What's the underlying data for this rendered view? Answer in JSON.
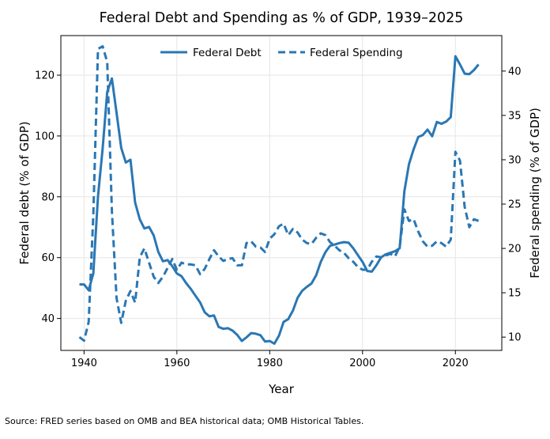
{
  "chart_data": {
    "type": "line",
    "title": "Federal Debt and Spending as % of GDP, 1939–2025",
    "xlabel": "Year",
    "ylabel_left": "Federal debt (% of GDP)",
    "ylabel_right": "Federal spending (% of GDP)",
    "xlim": [
      1935,
      2030
    ],
    "ylim_left": [
      29.5,
      133
    ],
    "ylim_right": [
      8.5,
      44
    ],
    "x_ticks": [
      1940,
      1960,
      1980,
      2000,
      2020
    ],
    "y_ticks_left": [
      40,
      60,
      80,
      100,
      120
    ],
    "y_ticks_right": [
      10,
      15,
      20,
      25,
      30,
      35,
      40
    ],
    "grid": true,
    "legend_position": "top-center",
    "colors": {
      "line": "#2a77b4"
    },
    "series": [
      {
        "name": "Federal Debt",
        "axis": "left",
        "style": "solid",
        "x": [
          1939,
          1940,
          1941,
          1942,
          1943,
          1944,
          1945,
          1946,
          1947,
          1948,
          1949,
          1950,
          1951,
          1952,
          1953,
          1954,
          1955,
          1956,
          1957,
          1958,
          1959,
          1960,
          1961,
          1962,
          1963,
          1964,
          1965,
          1966,
          1967,
          1968,
          1969,
          1970,
          1971,
          1972,
          1973,
          1974,
          1975,
          1976,
          1977,
          1978,
          1979,
          1980,
          1981,
          1982,
          1983,
          1984,
          1985,
          1986,
          1987,
          1988,
          1989,
          1990,
          1991,
          1992,
          1993,
          1994,
          1995,
          1996,
          1997,
          1998,
          1999,
          2000,
          2001,
          2002,
          2003,
          2004,
          2005,
          2006,
          2007,
          2008,
          2009,
          2010,
          2011,
          2012,
          2013,
          2014,
          2015,
          2016,
          2017,
          2018,
          2019,
          2020,
          2021,
          2022,
          2023,
          2024,
          2025
        ],
        "values": [
          51.2,
          51.2,
          49.3,
          54.8,
          80.1,
          95.9,
          114.5,
          118.9,
          107.6,
          96.1,
          91.3,
          92.2,
          78.1,
          72.6,
          69.6,
          70.1,
          67.3,
          61.9,
          58.8,
          59.2,
          57.2,
          54.8,
          53.9,
          51.6,
          49.7,
          47.5,
          45.3,
          42.0,
          40.7,
          41.0,
          37.2,
          36.6,
          36.8,
          36.0,
          34.6,
          32.6,
          33.8,
          35.2,
          35.0,
          34.5,
          32.4,
          32.6,
          31.7,
          34.4,
          38.9,
          39.8,
          42.6,
          46.8,
          49.1,
          50.4,
          51.5,
          54.2,
          58.6,
          61.8,
          63.9,
          64.3,
          64.8,
          65.1,
          64.9,
          63.1,
          60.8,
          58.6,
          55.6,
          55.4,
          57.5,
          60.1,
          61.1,
          61.6,
          62.1,
          63.1,
          81.8,
          90.7,
          95.6,
          99.7,
          100.3,
          102.1,
          99.9,
          104.6,
          104.0,
          104.7,
          106.2,
          126.2,
          123.5,
          120.5,
          120.3,
          121.7,
          123.5
        ]
      },
      {
        "name": "Federal Spending",
        "axis": "right",
        "style": "dashed",
        "x": [
          1939,
          1940,
          1941,
          1942,
          1943,
          1944,
          1945,
          1946,
          1947,
          1948,
          1949,
          1950,
          1951,
          1952,
          1953,
          1954,
          1955,
          1956,
          1957,
          1958,
          1959,
          1960,
          1961,
          1962,
          1963,
          1964,
          1965,
          1966,
          1967,
          1968,
          1969,
          1970,
          1971,
          1972,
          1973,
          1974,
          1975,
          1976,
          1977,
          1978,
          1979,
          1980,
          1981,
          1982,
          1983,
          1984,
          1985,
          1986,
          1987,
          1988,
          1989,
          1990,
          1991,
          1992,
          1993,
          1994,
          1995,
          1996,
          1997,
          1998,
          1999,
          2000,
          2001,
          2002,
          2003,
          2004,
          2005,
          2006,
          2007,
          2008,
          2009,
          2010,
          2011,
          2012,
          2013,
          2014,
          2015,
          2016,
          2017,
          2018,
          2019,
          2020,
          2021,
          2022,
          2023,
          2024,
          2025
        ],
        "values": [
          10.0,
          9.6,
          11.7,
          23.8,
          42.5,
          42.8,
          41.0,
          24.2,
          14.4,
          11.6,
          14.1,
          15.2,
          13.9,
          19.0,
          20.0,
          18.4,
          16.8,
          16.1,
          16.8,
          17.8,
          18.8,
          17.6,
          18.4,
          18.2,
          18.2,
          18.1,
          17.1,
          17.7,
          18.8,
          19.8,
          19.1,
          18.6,
          18.8,
          18.9,
          18.1,
          18.1,
          20.6,
          20.8,
          20.2,
          20.1,
          19.6,
          21.1,
          21.6,
          22.5,
          22.8,
          21.5,
          22.2,
          21.8,
          21.0,
          20.6,
          20.5,
          21.2,
          21.7,
          21.5,
          20.7,
          20.3,
          19.8,
          19.5,
          18.9,
          18.5,
          17.9,
          17.6,
          17.6,
          18.5,
          19.1,
          19.0,
          19.2,
          19.4,
          19.1,
          20.2,
          24.4,
          23.1,
          23.3,
          21.9,
          20.8,
          20.2,
          20.3,
          20.8,
          20.6,
          20.2,
          21.0,
          30.9,
          29.9,
          24.7,
          22.4,
          23.3,
          23.1
        ]
      }
    ]
  },
  "source_note": "Source: FRED series based on OMB and BEA historical data; OMB Historical Tables."
}
